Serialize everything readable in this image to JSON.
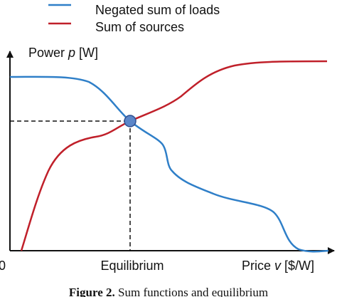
{
  "legend": {
    "entries": [
      "Negated sum of loads",
      "Sum of sources"
    ]
  },
  "y_label": {
    "prefix": "Power ",
    "var": "p",
    "unit": " [W]"
  },
  "x_label": {
    "prefix": "Price ",
    "var": "v",
    "unit": " [$/W]"
  },
  "origin": "0",
  "equilibrium": "Equilibrium",
  "caption": {
    "label": "Figure 2.",
    "text": " Sum functions and equilibrium"
  }
}
